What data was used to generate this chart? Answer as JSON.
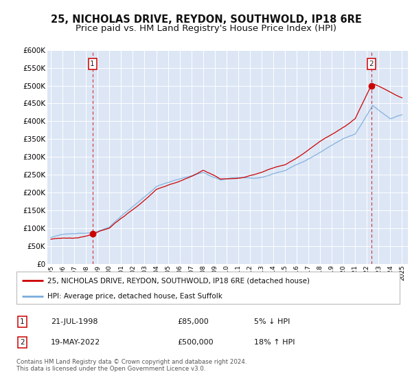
{
  "title": "25, NICHOLAS DRIVE, REYDON, SOUTHWOLD, IP18 6RE",
  "subtitle": "Price paid vs. HM Land Registry's House Price Index (HPI)",
  "title_fontsize": 10.5,
  "subtitle_fontsize": 9.5,
  "background_color": "#dce6f5",
  "fig_bg_color": "#ffffff",
  "ylim": [
    0,
    600000
  ],
  "yticks": [
    0,
    50000,
    100000,
    150000,
    200000,
    250000,
    300000,
    350000,
    400000,
    450000,
    500000,
    550000,
    600000
  ],
  "ytick_labels": [
    "£0",
    "£50K",
    "£100K",
    "£150K",
    "£200K",
    "£250K",
    "£300K",
    "£350K",
    "£400K",
    "£450K",
    "£500K",
    "£550K",
    "£600K"
  ],
  "xlim_start": 1994.7,
  "xlim_end": 2025.5,
  "sale1_x": 1998.55,
  "sale1_y": 85000,
  "sale1_label": "1",
  "sale2_x": 2022.38,
  "sale2_y": 500000,
  "sale2_label": "2",
  "red_line_color": "#cc0000",
  "blue_line_color": "#7aacdc",
  "legend_red_label": "25, NICHOLAS DRIVE, REYDON, SOUTHWOLD, IP18 6RE (detached house)",
  "legend_blue_label": "HPI: Average price, detached house, East Suffolk",
  "table_row1_num": "1",
  "table_row1_date": "21-JUL-1998",
  "table_row1_price": "£85,000",
  "table_row1_hpi": "5% ↓ HPI",
  "table_row2_num": "2",
  "table_row2_date": "19-MAY-2022",
  "table_row2_price": "£500,000",
  "table_row2_hpi": "18% ↑ HPI",
  "footer": "Contains HM Land Registry data © Crown copyright and database right 2024.\nThis data is licensed under the Open Government Licence v3.0.",
  "grid_color": "#ffffff",
  "vline_color": "#cc0000",
  "marker_color": "#cc0000",
  "marker_size": 6
}
